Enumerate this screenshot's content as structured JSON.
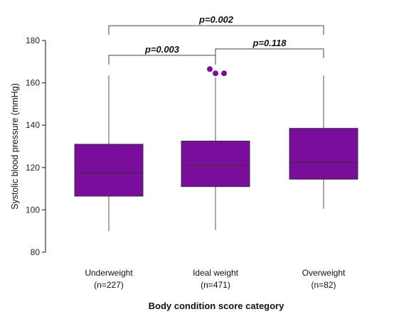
{
  "chart_data": {
    "type": "box",
    "xlabel": "Body condition score category",
    "ylabel": "Systolic blood pressure (mmHg)",
    "ylim": [
      80,
      180
    ],
    "yticks": [
      80,
      100,
      120,
      140,
      160,
      180
    ],
    "grid": false,
    "box_color": "#7a0d99",
    "categories": [
      {
        "label": "Underweight",
        "n_label": "(n=227)",
        "whisker_low": 90,
        "q1": 106.5,
        "median": 117.5,
        "q3": 131,
        "whisker_high": 163.5,
        "outliers": []
      },
      {
        "label": "Ideal weight",
        "n_label": "(n=471)",
        "whisker_low": 90.5,
        "q1": 111,
        "median": 121,
        "q3": 132.5,
        "whisker_high": 162.5,
        "outliers": [
          166.5,
          164.5,
          164.5
        ]
      },
      {
        "label": "Overweight",
        "n_label": "(n=82)",
        "whisker_low": 100.5,
        "q1": 114.5,
        "median": 122.5,
        "q3": 138.5,
        "whisker_high": 163.5,
        "outliers": []
      }
    ],
    "comparisons": [
      {
        "from": 0,
        "to": 1,
        "label": "p=0.003",
        "y": 173
      },
      {
        "from": 1,
        "to": 2,
        "label": "p=0.118",
        "y": 176
      },
      {
        "from": 0,
        "to": 2,
        "label": "p=0.002",
        "y": 187
      }
    ]
  }
}
